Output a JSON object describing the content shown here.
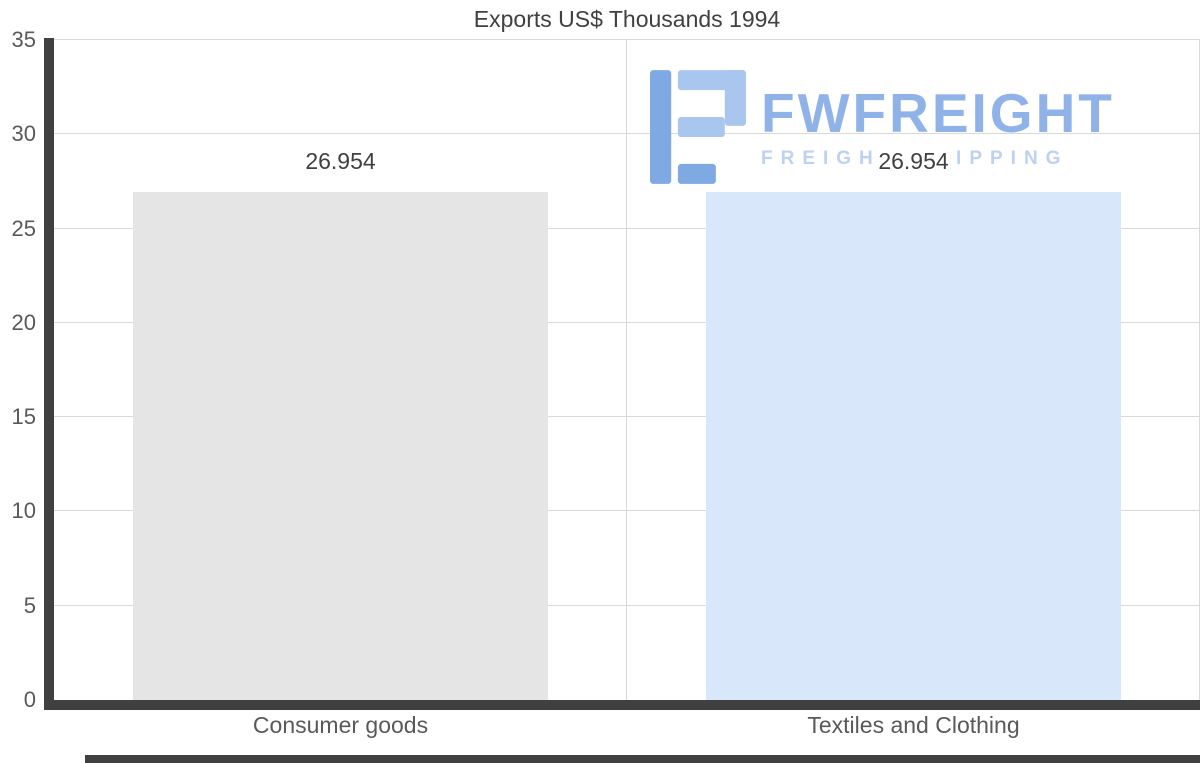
{
  "chart_data": {
    "type": "bar",
    "title": "Exports US$ Thousands 1994",
    "categories": [
      "Consumer goods",
      "Textiles and Clothing"
    ],
    "values": [
      26.954,
      26.954
    ],
    "value_labels": [
      "26.954",
      "26.954"
    ],
    "bar_colors": [
      "#e5e5e5",
      "#d8e7f9"
    ],
    "xlabel": "",
    "ylabel": "",
    "ylim": [
      0,
      35
    ],
    "yticks": [
      0,
      5,
      10,
      15,
      20,
      25,
      30,
      35
    ],
    "grid": true,
    "legend": "none"
  },
  "watermark": {
    "brand": "FWFREIGHT",
    "tagline": "FREIGHT SHIPPING",
    "brand_color": "#8fb3e8",
    "tagline_color": "#bdd1f3",
    "icon_color_light": "#a9c6ee",
    "icon_color_dark": "#7ea9e2"
  },
  "colors": {
    "axis": "#404040",
    "gridline": "#d9d9d9",
    "tick_label": "#595959",
    "title": "#404040",
    "value_label": "#404040",
    "background": "#ffffff"
  }
}
